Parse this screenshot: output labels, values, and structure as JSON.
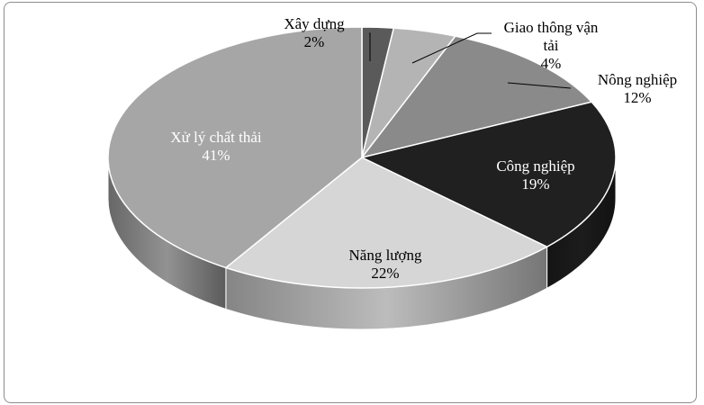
{
  "chart_data": {
    "type": "pie",
    "style": "3d",
    "start_angle_deg": 0,
    "direction": "clockwise",
    "slices": [
      {
        "label_lines": [
          "Xây dựng"
        ],
        "value_label": "2%",
        "value": 2,
        "color": "#5a5a5a",
        "label_color": "#000000"
      },
      {
        "label_lines": [
          "Giao thông vận",
          "tải"
        ],
        "value_label": "4%",
        "value": 4,
        "color": "#b4b4b4",
        "label_color": "#000000"
      },
      {
        "label_lines": [
          "Nông nghiệp"
        ],
        "value_label": "12%",
        "value": 12,
        "color": "#8a8a8a",
        "label_color": "#000000"
      },
      {
        "label_lines": [
          "Công nghiệp"
        ],
        "value_label": "19%",
        "value": 19,
        "color": "#202020",
        "label_color": "#ffffff"
      },
      {
        "label_lines": [
          "Năng lượng"
        ],
        "value_label": "22%",
        "value": 22,
        "color": "#d6d6d6",
        "label_color": "#000000"
      },
      {
        "label_lines": [
          "Xử lý chất thải"
        ],
        "value_label": "41%",
        "value": 41,
        "color": "#a6a6a6",
        "label_color": "#ffffff"
      }
    ]
  }
}
